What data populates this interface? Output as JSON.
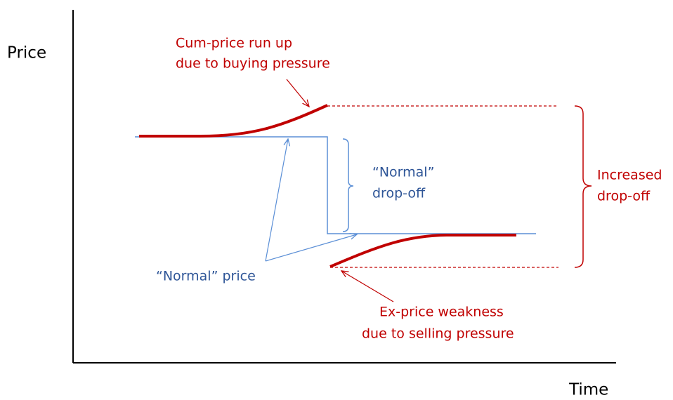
{
  "axes": {
    "y_label": "Price",
    "x_label": "Time"
  },
  "annotations": {
    "cum_price": [
      "Cum-price run up",
      "due to buying pressure"
    ],
    "normal_dropoff": [
      "“Normal”",
      "drop-off"
    ],
    "increased_dropoff": [
      "Increased",
      "drop-off"
    ],
    "normal_price": "“Normal” price",
    "ex_price": [
      "Ex-price weakness",
      "due to selling pressure"
    ]
  }
}
